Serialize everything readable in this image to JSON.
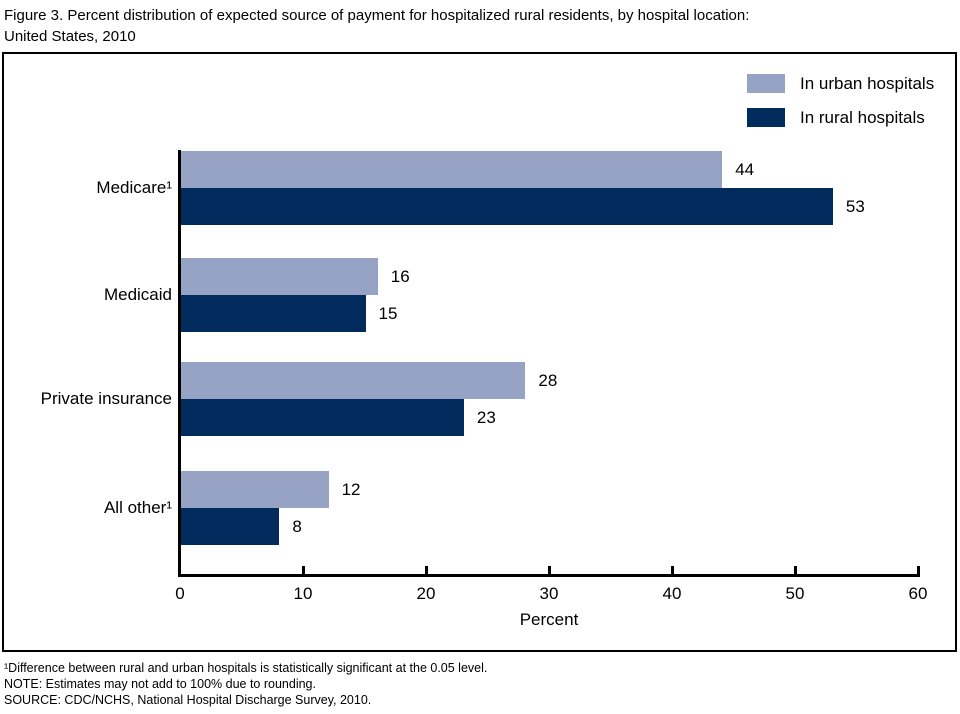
{
  "title_line1": "Figure 3. Percent distribution of expected source of payment for hospitalized rural residents, by hospital location:",
  "title_line2": "United States, 2010",
  "chart_data": {
    "type": "bar",
    "orientation": "horizontal",
    "title": "Figure 3. Percent distribution of expected source of payment for hospitalized rural residents, by hospital location: United States, 2010",
    "categories": [
      "Medicare¹",
      "Medicaid",
      "Private insurance",
      "All other¹"
    ],
    "series": [
      {
        "name": "In urban hospitals",
        "color": "#96a3c5",
        "values": [
          44,
          16,
          28,
          12
        ]
      },
      {
        "name": "In rural hospitals",
        "color": "#002b5c",
        "values": [
          53,
          15,
          23,
          8
        ]
      }
    ],
    "xlabel": "Percent",
    "ylabel": "",
    "x_ticks": [
      0,
      10,
      20,
      30,
      40,
      50,
      60
    ],
    "xlim": [
      0,
      60
    ],
    "grid": false,
    "legend_position": "top-right",
    "value_labels": true
  },
  "footnotes": {
    "significance": "¹Difference between rural and urban hospitals is statistically significant at the 0.05 level.",
    "note": "NOTE: Estimates may not add to 100% due to rounding.",
    "source": "SOURCE: CDC/NCHS, National Hospital Discharge Survey, 2010."
  },
  "colors": {
    "urban": "#96a3c5",
    "rural": "#002b5c",
    "axis": "#000000",
    "frame_border": "#000000",
    "background": "#ffffff"
  }
}
